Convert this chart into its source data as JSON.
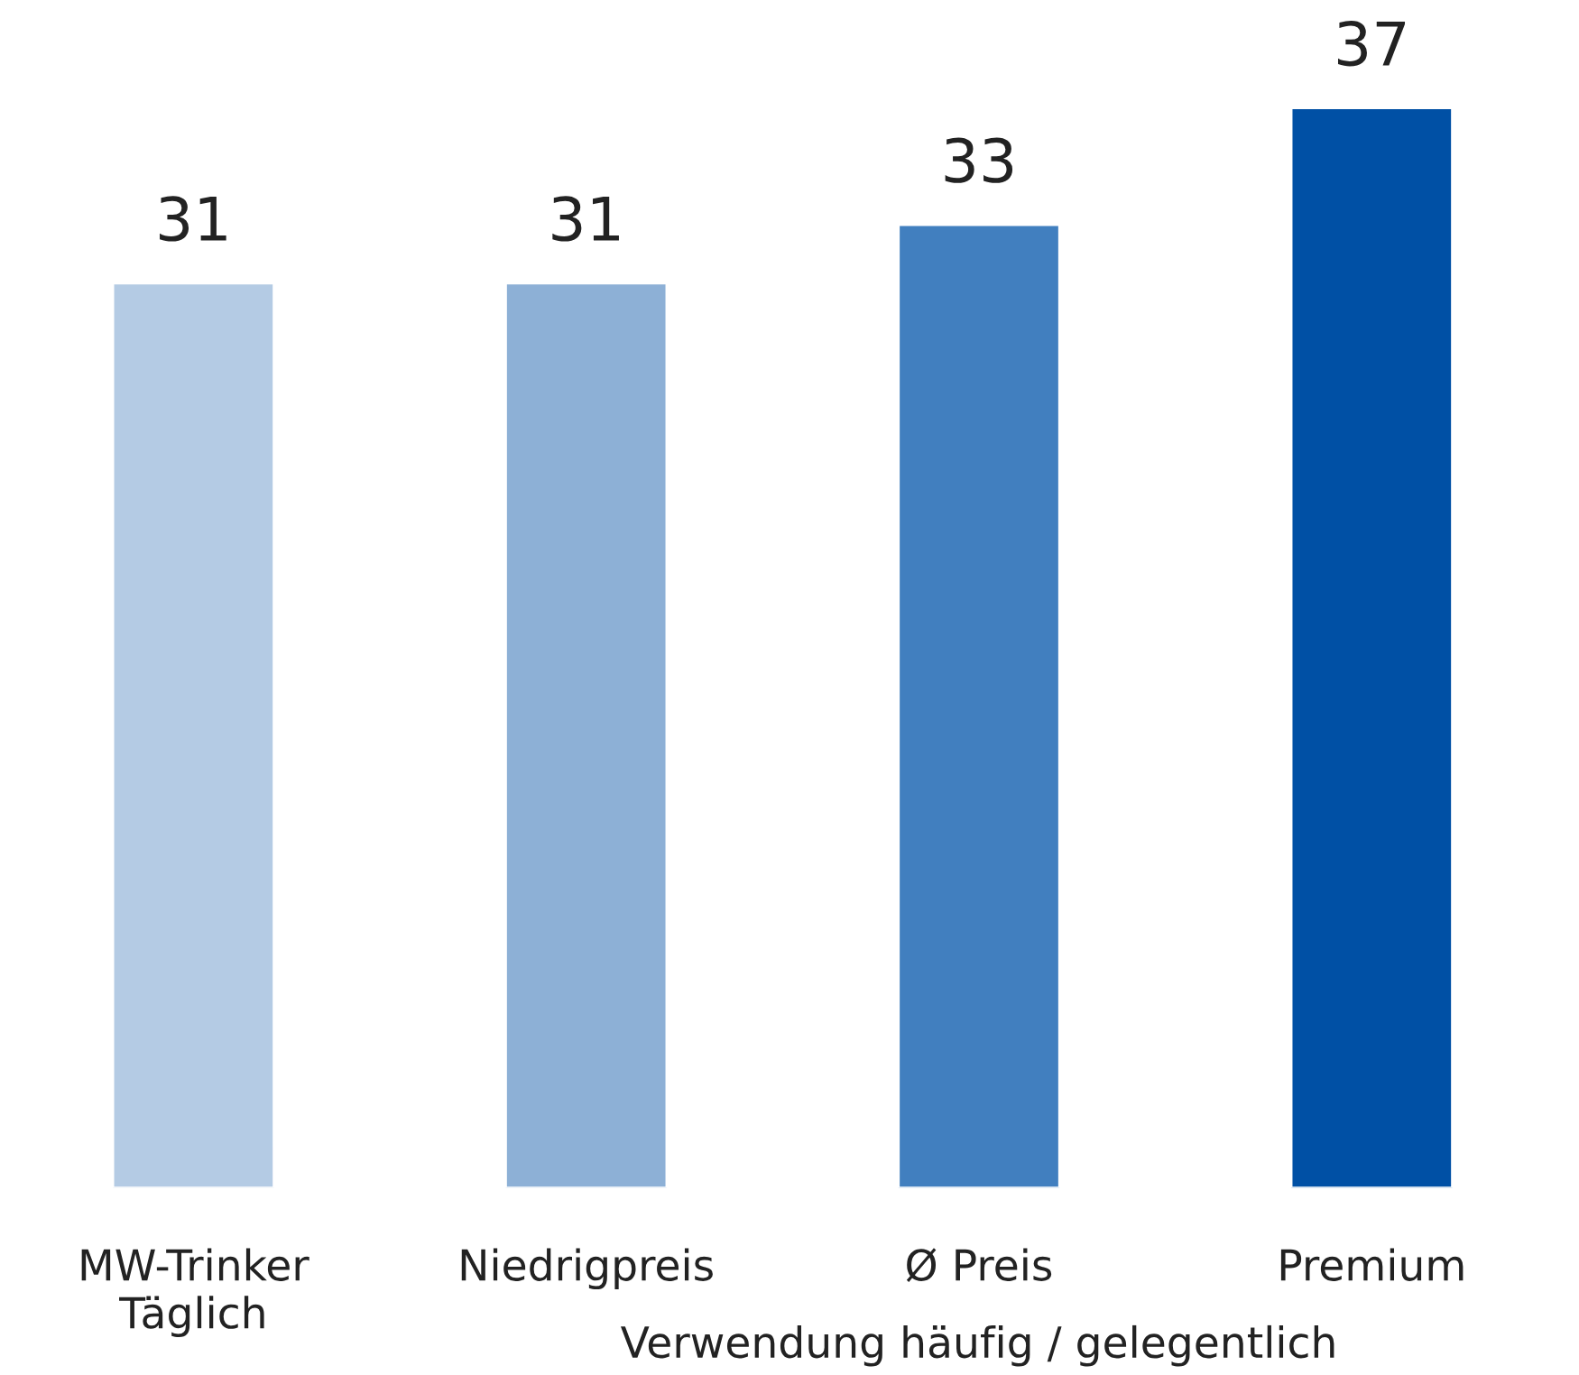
{
  "chart_data": {
    "type": "bar",
    "categories": [
      "MW-Trinker\nTäglich",
      "Niedrigpreis",
      "Ø Preis",
      "Premium"
    ],
    "values": [
      31,
      31,
      33,
      37
    ],
    "colors": [
      "#b4cbe4",
      "#8db0d6",
      "#417fbf",
      "#0050a5"
    ],
    "data_labels": true,
    "annotations": [
      "Verwendung häufig / gelegentlich"
    ]
  }
}
